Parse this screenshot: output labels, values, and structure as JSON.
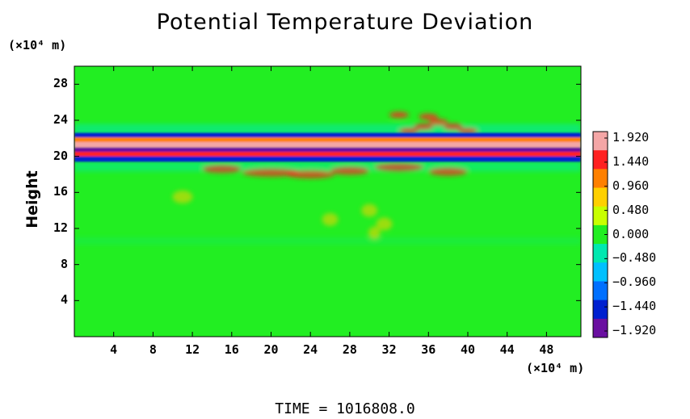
{
  "chart_data": {
    "type": "heatmap",
    "title": "Potential Temperature Deviation",
    "ylabel": "Height",
    "yunit": "(×10⁴ m)",
    "xunit": "(×10⁴ m)",
    "xlim": [
      0,
      51.5
    ],
    "ylim": [
      0,
      30
    ],
    "xticks": [
      "4",
      "8",
      "12",
      "16",
      "20",
      "24",
      "28",
      "32",
      "36",
      "40",
      "44",
      "48"
    ],
    "yticks": [
      "4",
      "8",
      "12",
      "16",
      "20",
      "24",
      "28"
    ],
    "grid": false,
    "colorbar": {
      "labels": [
        "1.920",
        "1.440",
        "0.960",
        "0.480",
        "0.000",
        "−0.480",
        "−0.960",
        "−1.440",
        "−1.920"
      ],
      "range": [
        -1.92,
        1.92
      ],
      "colors": [
        "#f4a6a6",
        "#ff2020",
        "#ff8000",
        "#ffd000",
        "#c8ff00",
        "#22ee22",
        "#00e8b0",
        "#00c0ff",
        "#0070ff",
        "#0020d0",
        "#6a0fa0"
      ]
    },
    "bands": [
      {
        "y": 22.3,
        "value": -1.6
      },
      {
        "y": 21.8,
        "value": 1.0
      },
      {
        "y": 21.3,
        "value": 1.8
      },
      {
        "y": 20.7,
        "value": -1.9
      },
      {
        "y": 20.2,
        "value": 1.7
      },
      {
        "y": 19.7,
        "value": -1.5
      }
    ],
    "footer": "TIME  =  1016808.0"
  }
}
